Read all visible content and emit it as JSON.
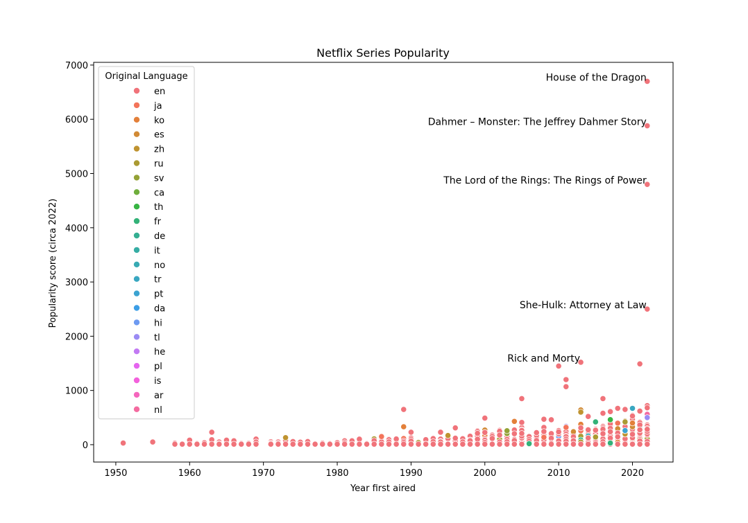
{
  "chart_data": {
    "type": "scatter",
    "title": "Netflix Series Popularity",
    "xlabel": "Year first aired",
    "ylabel": "Popularity score (circa 2022)",
    "xlim": [
      1947,
      2025.5
    ],
    "ylim": [
      -320,
      7050
    ],
    "xticks": [
      1950,
      1960,
      1970,
      1980,
      1990,
      2000,
      2010,
      2020
    ],
    "yticks": [
      0,
      1000,
      2000,
      3000,
      4000,
      5000,
      6000,
      7000
    ],
    "grid": false,
    "legend": {
      "title": "Original Language",
      "placement": "upper-left",
      "entries": [
        {
          "name": "en",
          "color": "#f0737a"
        },
        {
          "name": "ja",
          "color": "#f3745a"
        },
        {
          "name": "ko",
          "color": "#e3803a"
        },
        {
          "name": "es",
          "color": "#d18a35"
        },
        {
          "name": "zh",
          "color": "#bf9330"
        },
        {
          "name": "ru",
          "color": "#aa9a32"
        },
        {
          "name": "sv",
          "color": "#94a236"
        },
        {
          "name": "ca",
          "color": "#6fae3c"
        },
        {
          "name": "th",
          "color": "#37b543"
        },
        {
          "name": "fr",
          "color": "#33b278"
        },
        {
          "name": "de",
          "color": "#35af92"
        },
        {
          "name": "it",
          "color": "#36ada4"
        },
        {
          "name": "no",
          "color": "#38aab3"
        },
        {
          "name": "tr",
          "color": "#39a7c1"
        },
        {
          "name": "pt",
          "color": "#3ba3d1"
        },
        {
          "name": "da",
          "color": "#3c9ee6"
        },
        {
          "name": "hi",
          "color": "#6d9af1"
        },
        {
          "name": "tl",
          "color": "#9b8bf4"
        },
        {
          "name": "he",
          "color": "#c27af3"
        },
        {
          "name": "pl",
          "color": "#e565ef"
        },
        {
          "name": "is",
          "color": "#f361dc"
        },
        {
          "name": "ar",
          "color": "#f566bd"
        },
        {
          "name": "nl",
          "color": "#f46ba0"
        }
      ]
    },
    "annotations": [
      {
        "text": "House of the Dragon",
        "x": 2022,
        "y": 6700
      },
      {
        "text": "Dahmer – Monster: The Jeffrey Dahmer Story",
        "x": 2022,
        "y": 5880
      },
      {
        "text": "The Lord of the Rings: The Rings of Power",
        "x": 2022,
        "y": 4800
      },
      {
        "text": "She-Hulk: Attorney at Law",
        "x": 2022,
        "y": 2500
      },
      {
        "text": "Rick and Morty",
        "x": 2013,
        "y": 1520
      }
    ],
    "highlight_points": [
      {
        "x": 2022,
        "y": 6700,
        "language": "en"
      },
      {
        "x": 2022,
        "y": 5880,
        "language": "en"
      },
      {
        "x": 2022,
        "y": 4800,
        "language": "en"
      },
      {
        "x": 2022,
        "y": 2500,
        "language": "en"
      },
      {
        "x": 2013,
        "y": 1520,
        "language": "en"
      },
      {
        "x": 2010,
        "y": 1450,
        "language": "en"
      },
      {
        "x": 2021,
        "y": 1490,
        "language": "en"
      },
      {
        "x": 2011,
        "y": 1200,
        "language": "en"
      },
      {
        "x": 2011,
        "y": 1070,
        "language": "en"
      },
      {
        "x": 2005,
        "y": 850,
        "language": "en"
      },
      {
        "x": 2016,
        "y": 850,
        "language": "en"
      },
      {
        "x": 1989,
        "y": 650,
        "language": "en"
      },
      {
        "x": 2019,
        "y": 650,
        "language": "en"
      },
      {
        "x": 2018,
        "y": 670,
        "language": "en"
      },
      {
        "x": 2020,
        "y": 670,
        "language": "tr"
      },
      {
        "x": 2022,
        "y": 720,
        "language": "en"
      },
      {
        "x": 2022,
        "y": 680,
        "language": "en"
      },
      {
        "x": 2013,
        "y": 640,
        "language": "es"
      },
      {
        "x": 2013,
        "y": 600,
        "language": "zh"
      },
      {
        "x": 2021,
        "y": 620,
        "language": "en"
      },
      {
        "x": 2017,
        "y": 610,
        "language": "en"
      },
      {
        "x": 2016,
        "y": 580,
        "language": "en"
      },
      {
        "x": 2022,
        "y": 560,
        "language": "nl"
      },
      {
        "x": 2022,
        "y": 500,
        "language": "tl"
      },
      {
        "x": 2014,
        "y": 520,
        "language": "en"
      },
      {
        "x": 2000,
        "y": 490,
        "language": "en"
      },
      {
        "x": 2008,
        "y": 470,
        "language": "en"
      },
      {
        "x": 2009,
        "y": 460,
        "language": "en"
      },
      {
        "x": 2015,
        "y": 420,
        "language": "fr"
      },
      {
        "x": 2004,
        "y": 430,
        "language": "ko"
      },
      {
        "x": 2005,
        "y": 410,
        "language": "en"
      },
      {
        "x": 1989,
        "y": 330,
        "language": "ko"
      },
      {
        "x": 1996,
        "y": 310,
        "language": "en"
      },
      {
        "x": 2019,
        "y": 260,
        "language": "pt"
      },
      {
        "x": 2020,
        "y": 400,
        "language": "ko"
      },
      {
        "x": 1963,
        "y": 230,
        "language": "en"
      },
      {
        "x": 1990,
        "y": 230,
        "language": "en"
      },
      {
        "x": 1994,
        "y": 230,
        "language": "en"
      },
      {
        "x": 1986,
        "y": 150,
        "language": "ja"
      },
      {
        "x": 1995,
        "y": 170,
        "language": "zh"
      },
      {
        "x": 1973,
        "y": 130,
        "language": "zh"
      },
      {
        "x": 2006,
        "y": 20,
        "language": "fr"
      },
      {
        "x": 2017,
        "y": 30,
        "language": "fr"
      },
      {
        "x": 1951,
        "y": 30,
        "language": "en"
      },
      {
        "x": 1955,
        "y": 50,
        "language": "en"
      }
    ],
    "background_points": {
      "description_note": "dense low-score cluster per year",
      "year_range": [
        1958,
        2022
      ],
      "series_by_year_max": [
        [
          1958,
          40
        ],
        [
          1959,
          50
        ],
        [
          1960,
          90
        ],
        [
          1961,
          40
        ],
        [
          1962,
          40
        ],
        [
          1963,
          130
        ],
        [
          1964,
          90
        ],
        [
          1965,
          80
        ],
        [
          1966,
          70
        ],
        [
          1967,
          40
        ],
        [
          1968,
          30
        ],
        [
          1969,
          100
        ],
        [
          1971,
          90
        ],
        [
          1972,
          60
        ],
        [
          1973,
          80
        ],
        [
          1974,
          60
        ],
        [
          1975,
          70
        ],
        [
          1976,
          80
        ],
        [
          1977,
          60
        ],
        [
          1978,
          50
        ],
        [
          1979,
          40
        ],
        [
          1980,
          50
        ],
        [
          1981,
          70
        ],
        [
          1982,
          80
        ],
        [
          1983,
          130
        ],
        [
          1984,
          60
        ],
        [
          1985,
          110
        ],
        [
          1986,
          130
        ],
        [
          1987,
          100
        ],
        [
          1988,
          120
        ],
        [
          1989,
          130
        ],
        [
          1990,
          150
        ],
        [
          1991,
          100
        ],
        [
          1992,
          100
        ],
        [
          1993,
          120
        ],
        [
          1994,
          110
        ],
        [
          1995,
          130
        ],
        [
          1996,
          130
        ],
        [
          1997,
          200
        ],
        [
          1998,
          170
        ],
        [
          1999,
          280
        ],
        [
          2000,
          280
        ],
        [
          2001,
          180
        ],
        [
          2002,
          280
        ],
        [
          2003,
          300
        ],
        [
          2004,
          280
        ],
        [
          2005,
          330
        ],
        [
          2006,
          200
        ],
        [
          2007,
          240
        ],
        [
          2008,
          330
        ],
        [
          2009,
          200
        ],
        [
          2010,
          290
        ],
        [
          2011,
          400
        ],
        [
          2012,
          280
        ],
        [
          2013,
          380
        ],
        [
          2014,
          300
        ],
        [
          2015,
          330
        ],
        [
          2016,
          350
        ],
        [
          2017,
          480
        ],
        [
          2018,
          400
        ],
        [
          2019,
          450
        ],
        [
          2020,
          550
        ],
        [
          2021,
          450
        ],
        [
          2022,
          380
        ]
      ]
    }
  }
}
